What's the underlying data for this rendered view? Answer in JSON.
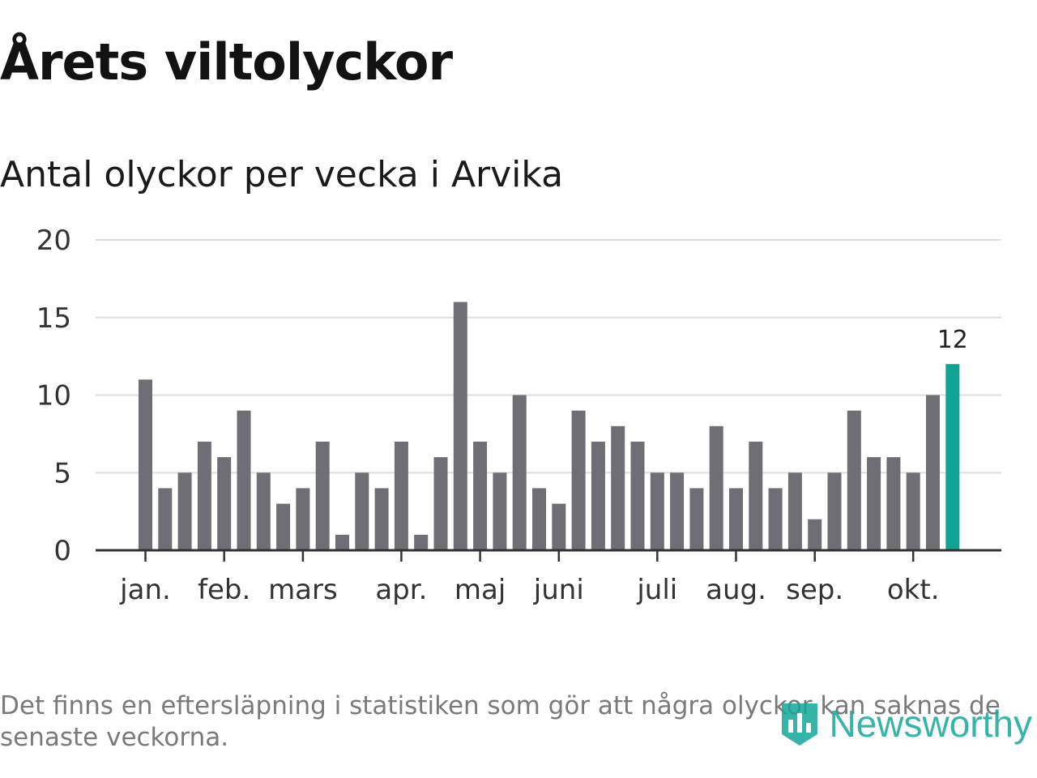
{
  "title": "Årets viltolyckor",
  "subtitle": "Antal olyckor per vecka i Arvika",
  "footnote": "Det finns en eftersläpning i statistiken som gör att några olyckor kan saknas de senaste veckorna.",
  "brand": "Newsworthy",
  "colors": {
    "bar": "#6f6e75",
    "highlight": "#0fa396",
    "grid": "#dddddd",
    "axis": "#333333"
  },
  "chart_data": {
    "type": "bar",
    "title": "Årets viltolyckor",
    "subtitle": "Antal olyckor per vecka i Arvika",
    "values": [
      11,
      4,
      5,
      7,
      6,
      9,
      5,
      3,
      4,
      7,
      1,
      5,
      4,
      7,
      1,
      6,
      16,
      7,
      5,
      10,
      4,
      3,
      9,
      7,
      8,
      7,
      5,
      5,
      4,
      8,
      4,
      7,
      4,
      5,
      2,
      5,
      9,
      6,
      6,
      5,
      10,
      12
    ],
    "highlight_index": 41,
    "highlight_label": "12",
    "yticks": [
      0,
      5,
      10,
      15,
      20
    ],
    "ylim": [
      0,
      20
    ],
    "month_labels": [
      {
        "label": "jan.",
        "index": 0
      },
      {
        "label": "feb.",
        "index": 4
      },
      {
        "label": "mars",
        "index": 8
      },
      {
        "label": "apr.",
        "index": 13
      },
      {
        "label": "maj",
        "index": 17
      },
      {
        "label": "juni",
        "index": 21
      },
      {
        "label": "juli",
        "index": 26
      },
      {
        "label": "aug.",
        "index": 30
      },
      {
        "label": "sep.",
        "index": 34
      },
      {
        "label": "okt.",
        "index": 39
      }
    ],
    "grid": true,
    "legend": "none"
  }
}
